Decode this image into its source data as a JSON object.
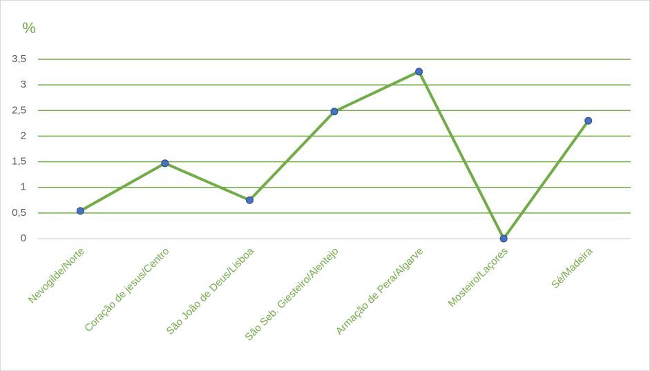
{
  "chart_data": {
    "type": "line",
    "y_label": "%",
    "categories": [
      "Nevogilde/Norte",
      "Coração de jesus/Centro",
      "São João de Deus/Lisboa",
      "São Seb. Giesteiro/Alentejo",
      "Armação de Pera/Algarve",
      "Mosteiro/Laçores",
      "Sé/Madeira"
    ],
    "series": [
      {
        "name": "%",
        "color": "#70ad47",
        "marker_color": "#4472c4",
        "values": [
          0.54,
          1.47,
          0.75,
          2.48,
          3.26,
          0,
          2.3
        ]
      }
    ],
    "ylim": [
      0,
      3.5
    ],
    "yticks": [
      0,
      {
        "value": 0.5,
        "label": "0,5"
      },
      1,
      {
        "value": 1.5,
        "label": "1,5"
      },
      2,
      {
        "value": 2.5,
        "label": "2,5"
      },
      3,
      {
        "value": 3.5,
        "label": "3,5"
      }
    ],
    "grid": true
  }
}
